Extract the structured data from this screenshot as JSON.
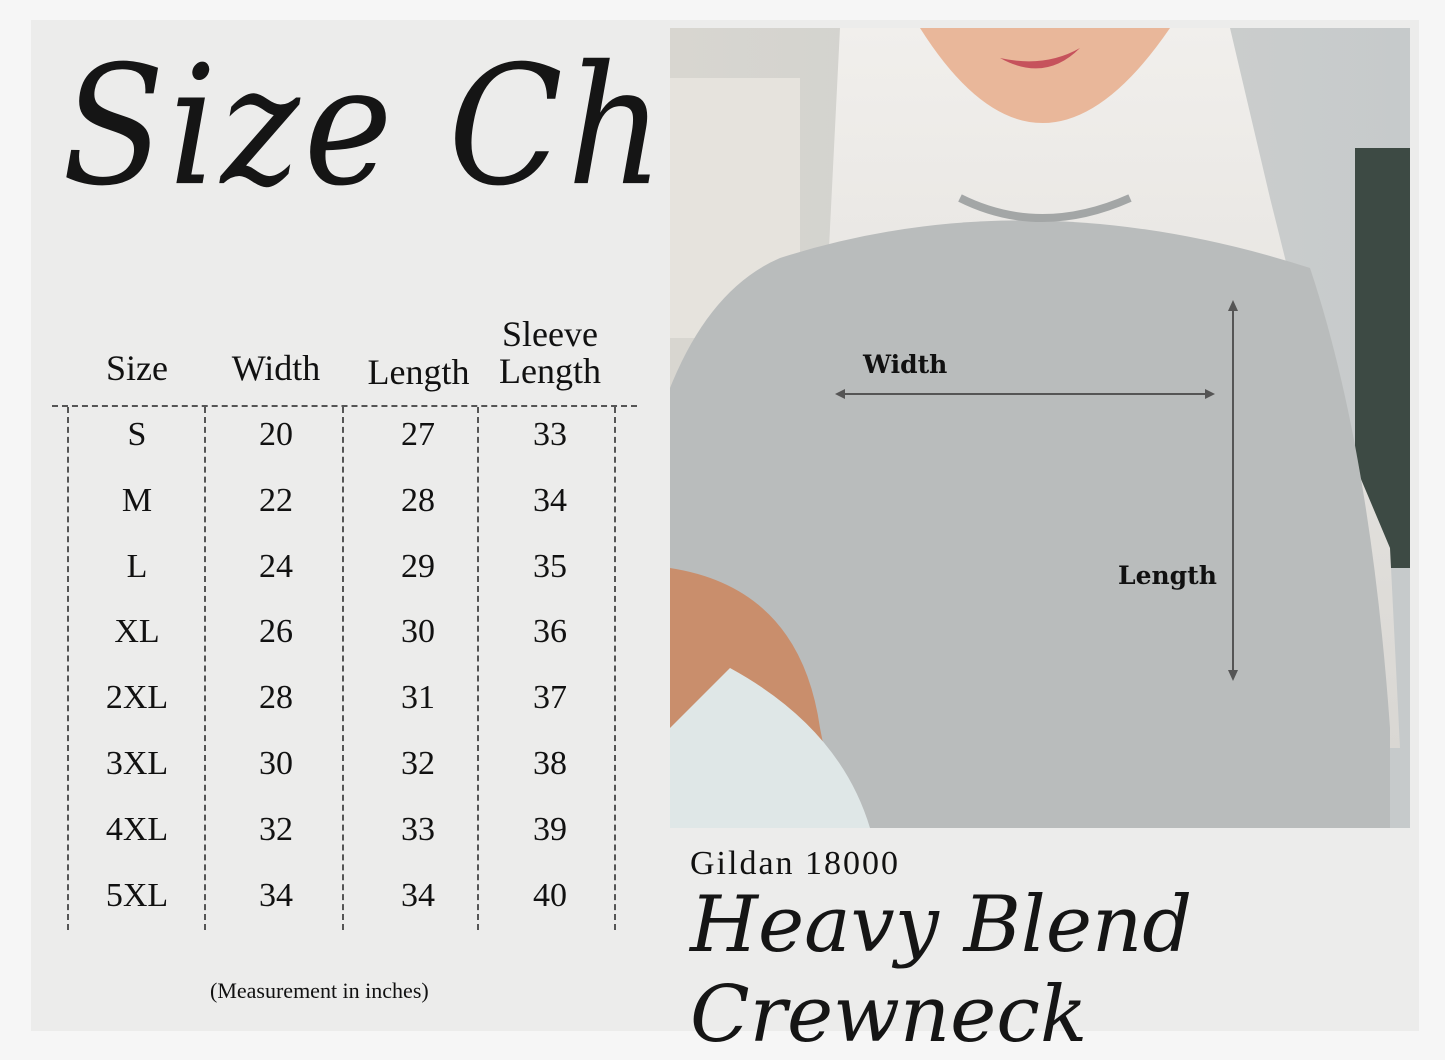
{
  "title": "Size Chart",
  "table": {
    "headers": [
      "Size",
      "Width",
      "Length",
      [
        "Sleeve",
        "Length"
      ]
    ],
    "rows": [
      [
        "S",
        "20",
        "27",
        "33"
      ],
      [
        "M",
        "22",
        "28",
        "34"
      ],
      [
        "L",
        "24",
        "29",
        "35"
      ],
      [
        "XL",
        "26",
        "30",
        "36"
      ],
      [
        "2XL",
        "28",
        "31",
        "37"
      ],
      [
        "3XL",
        "30",
        "32",
        "38"
      ],
      [
        "4XL",
        "32",
        "33",
        "39"
      ],
      [
        "5XL",
        "34",
        "34",
        "40"
      ]
    ]
  },
  "note": "(Measurement in inches)",
  "photo": {
    "width_label": "Width",
    "length_label": "Length",
    "sweatshirt_color": "#b9bcbc"
  },
  "product": {
    "brand": "Gildan 18000",
    "name": "Heavy Blend Crewneck"
  }
}
